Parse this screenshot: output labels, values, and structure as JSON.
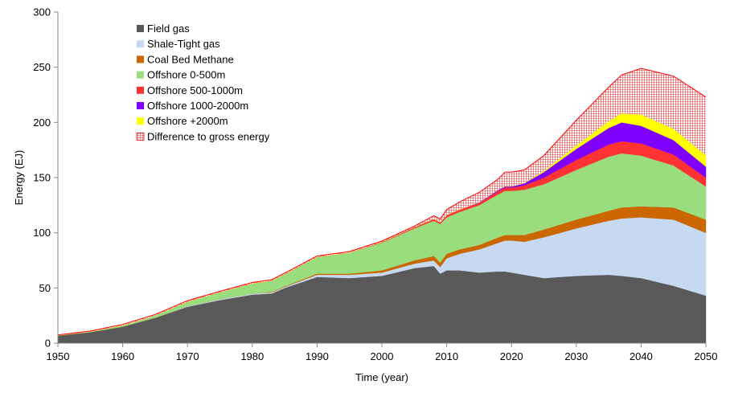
{
  "chart_data": {
    "type": "area",
    "stacked": true,
    "xlabel": "Time (year)",
    "ylabel": "Energy (EJ)",
    "xlim": [
      1950,
      2050
    ],
    "ylim": [
      0,
      300
    ],
    "xticks": [
      "1950",
      "1960",
      "1970",
      "1980",
      "1990",
      "2000",
      "2010",
      "2020",
      "2030",
      "2040",
      "2050"
    ],
    "yticks": [
      "0",
      "50",
      "100",
      "150",
      "200",
      "250",
      "300"
    ],
    "grid": false,
    "legend_position": "top-left",
    "x": [
      1950,
      1955,
      1960,
      1965,
      1970,
      1975,
      1980,
      1983,
      1985,
      1990,
      1995,
      2000,
      2005,
      2008,
      2009,
      2010,
      2012,
      2015,
      2018,
      2019,
      2020,
      2022,
      2025,
      2030,
      2035,
      2037,
      2040,
      2045,
      2050
    ],
    "series": [
      {
        "name": "Field gas",
        "color": "#595959",
        "values": [
          7,
          10,
          15,
          23,
          33,
          39,
          44,
          45,
          50,
          60,
          59,
          61,
          68,
          70,
          63,
          66,
          66,
          64,
          65,
          65,
          64,
          62,
          59,
          61,
          62,
          61,
          59,
          52,
          43
        ]
      },
      {
        "name": "Shale-Tight gas",
        "color": "#c6d9f1",
        "values": [
          0,
          0,
          0,
          0,
          0.5,
          1,
          1,
          1,
          1,
          2,
          3,
          3,
          4,
          5,
          6,
          11,
          15,
          21,
          26,
          28,
          29,
          30,
          37,
          43,
          49,
          52,
          55,
          60,
          57
        ]
      },
      {
        "name": "Coal Bed Methane",
        "color": "#cc6600",
        "values": [
          0,
          0,
          0,
          0,
          0,
          0,
          0,
          0.5,
          0.5,
          1,
          1,
          2,
          3,
          4,
          4,
          4,
          4,
          4,
          5,
          5,
          5,
          6,
          7,
          8,
          9,
          10,
          10,
          11,
          12
        ]
      },
      {
        "name": "Offshore 0-500m",
        "color": "#99dd7f",
        "values": [
          0,
          0.5,
          1,
          2,
          4,
          6,
          9,
          10,
          11,
          15,
          19,
          25,
          29,
          32,
          35,
          33,
          34,
          36,
          39,
          40,
          40,
          41,
          41,
          45,
          49,
          49,
          46,
          38,
          30
        ]
      },
      {
        "name": "Offshore 500-1000m",
        "color": "#ff3333",
        "values": [
          0,
          0,
          0,
          0,
          0,
          0,
          0,
          0,
          0,
          0,
          0,
          0.5,
          1,
          1.5,
          1.5,
          2,
          2,
          2,
          3,
          3,
          3,
          4,
          6,
          9,
          11,
          11,
          11,
          10,
          8
        ]
      },
      {
        "name": "Offshore 1000-2000m",
        "color": "#7f00ff",
        "values": [
          0,
          0,
          0,
          0,
          0,
          0,
          0,
          0,
          0,
          0,
          0,
          0,
          0,
          0,
          0,
          0,
          0,
          0.5,
          1,
          1,
          1,
          2,
          5,
          10,
          15,
          17,
          16,
          13,
          10
        ]
      },
      {
        "name": "Offshore +2000m",
        "color": "#ffff00",
        "values": [
          0,
          0,
          0,
          0,
          0,
          0,
          0,
          0,
          0,
          0,
          0,
          0,
          0,
          0,
          0,
          0,
          0,
          0,
          0,
          0,
          0,
          0,
          1,
          3,
          6,
          8,
          10,
          10,
          10
        ]
      },
      {
        "name": "Difference to gross energy",
        "color": "#ff0000",
        "pattern": "hatched",
        "values": [
          0.5,
          0.5,
          1,
          1,
          1,
          1,
          1,
          1,
          1,
          1,
          1,
          1,
          1,
          3,
          3,
          5,
          7,
          9,
          10,
          13,
          13,
          12,
          14,
          23,
          31,
          35,
          42,
          48,
          53
        ]
      }
    ]
  }
}
